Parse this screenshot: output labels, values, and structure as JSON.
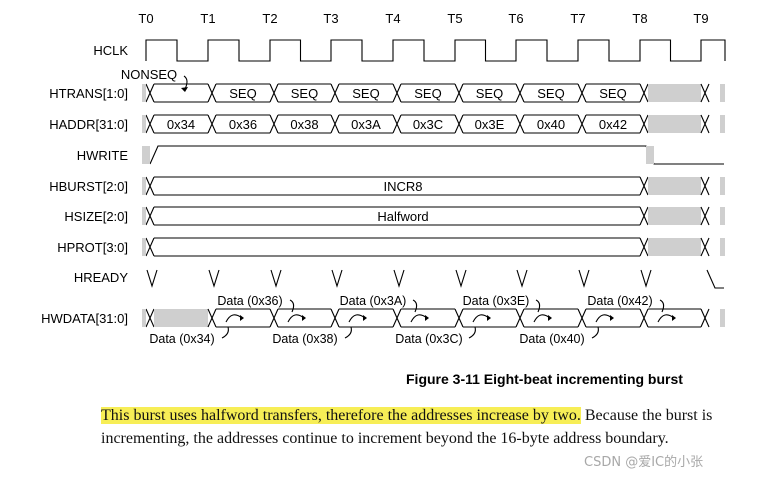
{
  "diagram": {
    "tick_labels": [
      "T0",
      "T1",
      "T2",
      "T3",
      "T4",
      "T5",
      "T6",
      "T7",
      "T8",
      "T9"
    ],
    "signals": [
      "HCLK",
      "HTRANS[1:0]",
      "HADDR[31:0]",
      "HWRITE",
      "HBURST[2:0]",
      "HSIZE[2:0]",
      "HPROT[3:0]",
      "HREADY",
      "HWDATA[31:0]"
    ],
    "htrans": {
      "first": "NONSEQ",
      "values": [
        "SEQ",
        "SEQ",
        "SEQ",
        "SEQ",
        "SEQ",
        "SEQ",
        "SEQ"
      ]
    },
    "haddr": [
      "0x34",
      "0x36",
      "0x38",
      "0x3A",
      "0x3C",
      "0x3E",
      "0x40",
      "0x42"
    ],
    "hburst": "INCR8",
    "hsize": "Halfword",
    "hwdata": {
      "upper": [
        "Data (0x36)",
        "Data (0x3A)",
        "Data (0x3E)",
        "Data (0x42)"
      ],
      "lower": [
        "Data (0x34)",
        "Data (0x38)",
        "Data (0x3C)",
        "Data (0x40)"
      ]
    }
  },
  "caption": "Figure 3-11 Eight-beat incrementing burst",
  "paragraph": {
    "highlight": "This burst uses halfword transfers, therefore the addresses increase by two.",
    "rest": " Because the burst is incrementing, the addresses continue to increment beyond the 16-byte address boundary."
  },
  "watermark": "CSDN @爱IC的小张",
  "colors": {
    "highlight": "#f7ee56",
    "ink": "#000000"
  }
}
